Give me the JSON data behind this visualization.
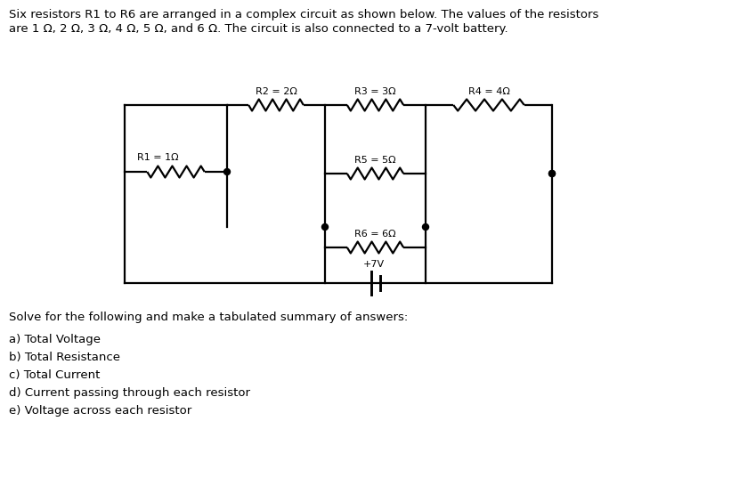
{
  "title_line1": "Six resistors R1 to R6 are arranged in a complex circuit as shown below. The values of the resistors",
  "title_line2": "are 1 Ω, 2 Ω, 3 Ω, 4 Ω, 5 Ω, and 6 Ω. The circuit is also connected to a 7-volt battery.",
  "solve_text": "Solve for the following and make a tabulated summary of answers:",
  "items": [
    "a) Total Voltage",
    "b) Total Resistance",
    "c) Total Current",
    "d) Current passing through each resistor",
    "e) Voltage across each resistor"
  ],
  "r1_label": "R1 = 1Ω",
  "r2_label": "R2 = 2Ω",
  "r3_label": "R3 = 3Ω",
  "r4_label": "R4 = 4Ω",
  "r5_label": "R5 = 5Ω",
  "r6_label": "R6 = 6Ω",
  "battery_label": "+7V",
  "bg_color": "#ffffff",
  "line_color": "#000000",
  "text_color": "#000000",
  "font_size_title": 9.5,
  "font_size_labels": 8.0,
  "font_size_solve": 9.5,
  "font_size_items": 9.5,
  "lw": 1.6
}
